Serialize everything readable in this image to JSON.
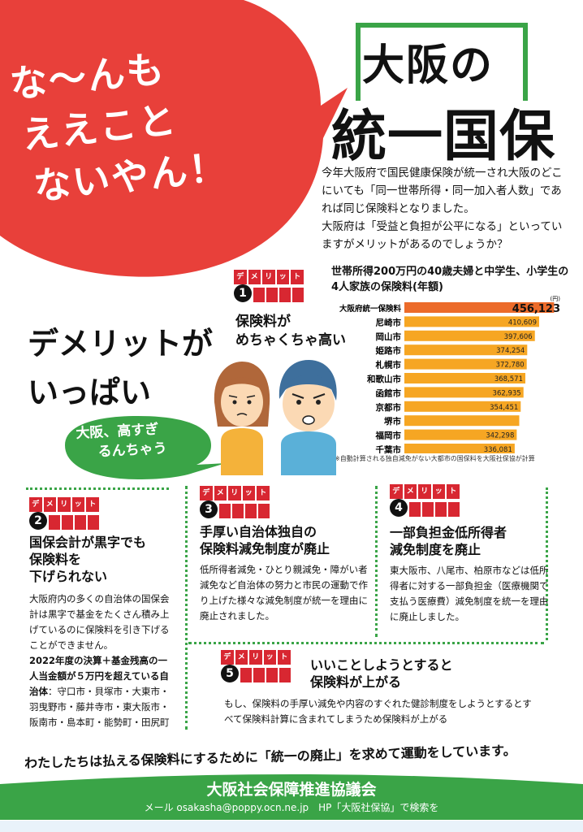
{
  "bubble": {
    "lines": [
      "な～んも",
      "ええこと",
      "ないやん！"
    ]
  },
  "title": {
    "line1": "大阪の",
    "line2": "統一国保"
  },
  "intro": {
    "p1": "今年大阪府で国民健康保険が統一され大阪のどこにいても「同一世帯所得・同一加入者人数」であれば同じ保険料となりました。",
    "p2": "大阪府は「受益と負担が公平になる」といっていますがメリットがあるのでしょうか？"
  },
  "chart_data": {
    "type": "bar",
    "orientation": "horizontal",
    "title": "世帯所得200万円の40歳夫婦と中学生、小学生の4人家族の保険料(年額)",
    "unit": "(円)",
    "categories": [
      "大阪府統一保険料",
      "尼崎市",
      "岡山市",
      "姫路市",
      "札幌市",
      "和歌山市",
      "函館市",
      "京都市",
      "堺市",
      "福岡市",
      "千葉市"
    ],
    "values": [
      456123,
      410609,
      397606,
      374254,
      372780,
      368571,
      362935,
      354451,
      350000,
      342298,
      336081
    ],
    "value_labels": [
      "456,123",
      "410,609",
      "397,606",
      "374,254",
      "372,780",
      "368,571",
      "362,935",
      "354,451",
      "",
      "342,298",
      "336,081"
    ],
    "xlim": [
      0,
      470000
    ],
    "colors": {
      "highlight": "#ec6b2a",
      "normal": "#f6a623"
    },
    "note": "※自動計算される独自減免がない大都市の国保料を大阪社保協が計算"
  },
  "badge": {
    "chars": [
      "デ",
      "メ",
      "リ",
      "ッ",
      "ト"
    ]
  },
  "demerit_main": {
    "line1": "デメリットが",
    "line2": "いっぱい"
  },
  "speech": {
    "line1": "大阪、高すぎ",
    "line2": "るんちゃう"
  },
  "d1": {
    "num": "1",
    "head1": "保険料が",
    "head2": "めちゃくちゃ高い"
  },
  "d2": {
    "num": "2",
    "head1": "国保会計が黒字でも",
    "head2": "保険料を",
    "head3": "下げられない",
    "body": "大阪府内の多くの自治体の国保会計は黒字で基金をたくさん積み上げているのに保険料を引き下げることができません。",
    "bold": "2022年度の決算＋基金残高の一人当金額が５万円を超えている自治体",
    "cities": "：守口市・貝塚市・大東市・羽曳野市・藤井寺市・東大阪市・阪南市・島本町・能勢町・田尻町"
  },
  "d3": {
    "num": "3",
    "head1": "手厚い自治体独自の",
    "head2": "保険料減免制度が廃止",
    "body": "低所得者減免・ひとり親減免・障がい者減免など自治体の努力と市民の運動で作り上げた様々な減免制度が統一を理由に廃止されました。"
  },
  "d4": {
    "num": "4",
    "head1": "一部負担金低所得者",
    "head2": "減免制度を廃止",
    "body": "東大阪市、八尾市、柏原市などは低所得者に対する一部負担金（医療機関で支払う医療費）減免制度を統一を理由に廃止しました。"
  },
  "d5": {
    "num": "5",
    "head1": "いいことしようとすると",
    "head2": "保険料が上がる",
    "body": "もし、保険料の手厚い減免や内容のすぐれた健診制度をしようとするとすべて保険料計算に含まれてしまうため保険料が上がる"
  },
  "slogan": "わたしたちは払える保険料にするために「統一の廃止」を求めて運動をしています。",
  "footer": {
    "name": "大阪社会保障推進協議会",
    "contact": "メール osakasha@poppy.ocn.ne.jp　HP「大阪社保協」で検索を"
  },
  "colors": {
    "red": "#e8403a",
    "green": "#3aa447",
    "badge_red": "#d82731"
  }
}
